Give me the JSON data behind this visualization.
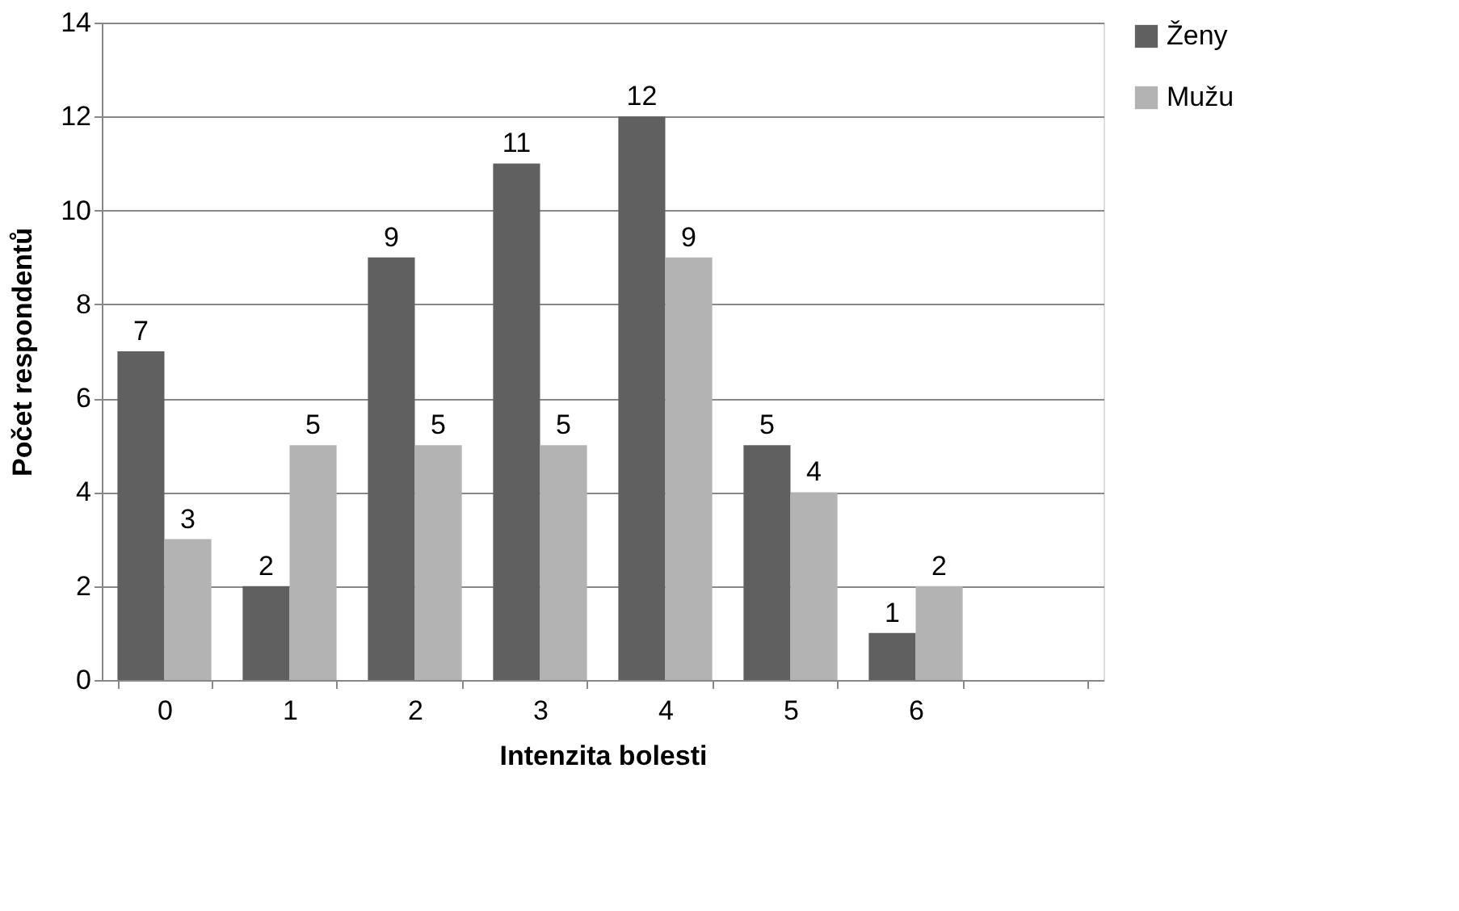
{
  "chart_data": {
    "type": "bar",
    "xlabel": "Intenzita bolesti",
    "ylabel": "Počet respondentů",
    "categories": [
      "0",
      "1",
      "2",
      "3",
      "4",
      "5",
      "6",
      null
    ],
    "series": [
      {
        "name": "Ženy",
        "color": "#606060",
        "values": [
          7,
          2,
          9,
          11,
          12,
          5,
          1,
          null
        ]
      },
      {
        "name": "Mužu",
        "color": "#b3b3b3",
        "values": [
          3,
          5,
          5,
          5,
          9,
          4,
          2,
          null
        ]
      }
    ],
    "ylim": [
      0,
      14
    ],
    "yticks": [
      0,
      2,
      4,
      6,
      8,
      10,
      12,
      14
    ],
    "grid": "y",
    "legend": "right",
    "data_labels": true
  }
}
